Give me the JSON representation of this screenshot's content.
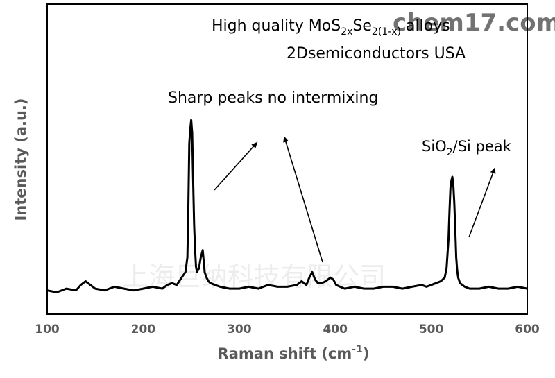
{
  "chart_data": {
    "type": "line",
    "xlabel_main": "Raman shift (cm",
    "xlabel_sup": "-1",
    "xlabel_end": ")",
    "ylabel": "Intensity (a.u.)",
    "xlim": [
      100,
      600
    ],
    "ylim": [
      0,
      1
    ],
    "x_ticks": [
      "100",
      "200",
      "300",
      "400",
      "500",
      "600"
    ],
    "grid": false,
    "legend": "none",
    "line_color": "#000000",
    "series": [
      {
        "x": [
          100,
          110,
          120,
          130,
          135,
          140,
          145,
          150,
          160,
          170,
          180,
          190,
          200,
          210,
          220,
          225,
          230,
          235,
          240,
          244,
          246,
          247,
          248,
          249,
          250,
          251,
          252,
          253,
          254,
          255,
          256,
          258,
          260,
          262,
          263,
          264,
          266,
          268,
          270,
          275,
          280,
          290,
          300,
          310,
          320,
          330,
          340,
          350,
          360,
          365,
          370,
          373,
          376,
          379,
          382,
          386,
          390,
          395,
          398,
          401,
          405,
          410,
          420,
          430,
          440,
          450,
          460,
          470,
          480,
          490,
          495,
          500,
          505,
          510,
          514,
          516,
          518,
          519,
          520,
          521,
          522,
          523,
          524,
          525,
          526,
          527,
          528,
          530,
          535,
          540,
          550,
          560,
          570,
          580,
          590,
          600
        ],
        "y": [
          0.02,
          0.01,
          0.03,
          0.02,
          0.05,
          0.07,
          0.05,
          0.03,
          0.02,
          0.04,
          0.03,
          0.02,
          0.03,
          0.04,
          0.03,
          0.05,
          0.06,
          0.05,
          0.09,
          0.12,
          0.2,
          0.45,
          0.82,
          0.9,
          0.95,
          0.88,
          0.62,
          0.38,
          0.25,
          0.15,
          0.12,
          0.14,
          0.2,
          0.24,
          0.18,
          0.12,
          0.09,
          0.07,
          0.06,
          0.05,
          0.04,
          0.03,
          0.03,
          0.04,
          0.03,
          0.05,
          0.04,
          0.04,
          0.05,
          0.07,
          0.05,
          0.09,
          0.12,
          0.08,
          0.06,
          0.06,
          0.07,
          0.09,
          0.08,
          0.05,
          0.04,
          0.03,
          0.04,
          0.03,
          0.03,
          0.04,
          0.04,
          0.03,
          0.04,
          0.05,
          0.04,
          0.05,
          0.06,
          0.07,
          0.09,
          0.14,
          0.3,
          0.45,
          0.58,
          0.62,
          0.64,
          0.6,
          0.5,
          0.36,
          0.2,
          0.13,
          0.09,
          0.06,
          0.04,
          0.03,
          0.03,
          0.04,
          0.03,
          0.03,
          0.04,
          0.03
        ]
      }
    ]
  },
  "annotations": {
    "title_line1_a": "High quality MoS",
    "title_sub1": "2x",
    "title_line1_b": "Se",
    "title_sub2": "2(1-x)",
    "title_line1_c": " alloys",
    "title_line2": "2Dsemiconductors USA",
    "peaks_label": "Sharp peaks no intermixing",
    "sio2_label_a": "SiO",
    "sio2_sub": "2",
    "sio2_label_b": "/Si peak"
  },
  "watermarks": {
    "site": "chem17.com",
    "company": "上海巨纳科技有限公司"
  }
}
